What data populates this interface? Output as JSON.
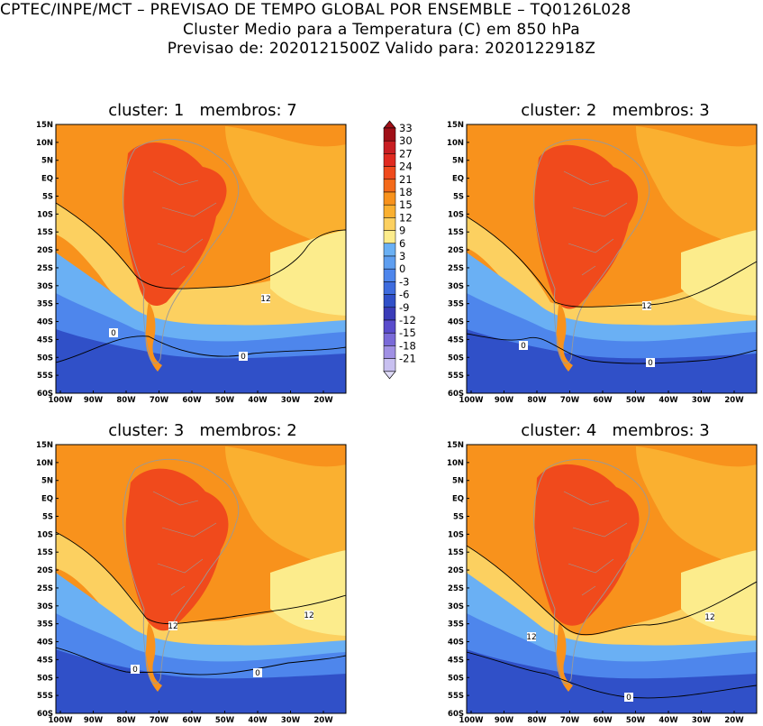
{
  "header": {
    "line1": "CPTEC/INPE/MCT – PREVISAO DE TEMPO GLOBAL POR ENSEMBLE – TQ0126L028",
    "line2": "Cluster Medio para a Temperatura (C) em 850 hPa",
    "line3": "Previsao de: 2020121500Z   Valido para: 2020122918Z"
  },
  "panels": [
    {
      "title": "cluster: 1   membros: 7",
      "contour_labels": [
        "12",
        "0",
        "0"
      ]
    },
    {
      "title": "cluster: 2   membros: 3",
      "contour_labels": [
        "12",
        "0",
        "0"
      ]
    },
    {
      "title": "cluster: 3   membros: 2",
      "contour_labels": [
        "12",
        "12",
        "0",
        "0"
      ]
    },
    {
      "title": "cluster: 4   membros: 3",
      "contour_labels": [
        "12",
        "12",
        "0"
      ]
    }
  ],
  "axes": {
    "lat_ticks": [
      "15N",
      "10N",
      "5N",
      "EQ",
      "5S",
      "10S",
      "15S",
      "20S",
      "25S",
      "30S",
      "35S",
      "40S",
      "45S",
      "50S",
      "55S",
      "60S"
    ],
    "lon_ticks": [
      "100W",
      "90W",
      "80W",
      "70W",
      "60W",
      "50W",
      "40W",
      "30W",
      "20W"
    ]
  },
  "colorbar": {
    "levels": [
      "33",
      "30",
      "27",
      "24",
      "21",
      "18",
      "15",
      "12",
      "9",
      "6",
      "3",
      "0",
      "-3",
      "-6",
      "-9",
      "-12",
      "-15",
      "-18",
      "-21"
    ],
    "colors": [
      "#a01018",
      "#c81e22",
      "#e02a20",
      "#f04a1c",
      "#f46a1a",
      "#f8921c",
      "#fab030",
      "#fcd060",
      "#fcec8c",
      "#6ab0f4",
      "#5e9ef0",
      "#4e86ec",
      "#3e6cde",
      "#3050c8",
      "#3a3cb8",
      "#5a4ccc",
      "#7a6ad8",
      "#a090e4",
      "#c8c0f0",
      "#e0dcf8"
    ]
  },
  "colors": {
    "bg": "#ffffff",
    "warm_orange": "#f8921c",
    "light_orange": "#fab030",
    "hot": "#f04a1c",
    "yellow": "#fcd060",
    "light_yellow": "#fcec8c",
    "light_blue": "#6ab0f4",
    "blue": "#4e86ec",
    "deep_blue": "#3050c8",
    "land_line": "#999999"
  }
}
